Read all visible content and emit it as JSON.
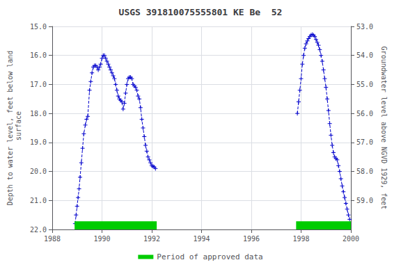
{
  "chart_data": {
    "type": "line",
    "title": "USGS 391810075555801 KE Be  52",
    "ylabel": "Depth to water level, feet below land\n surface",
    "y2label": "Groundwater level above NGVD 1929, feet",
    "xlim": [
      1988,
      2000
    ],
    "xticks": [
      1988,
      1990,
      1992,
      1994,
      1996,
      1998,
      2000
    ],
    "ylim": [
      22.0,
      15.0
    ],
    "yticks": [
      {
        "value": 15.0,
        "label": "15.0"
      },
      {
        "value": 16.0,
        "label": "16.0"
      },
      {
        "value": 17.0,
        "label": "17.0"
      },
      {
        "value": 18.0,
        "label": "18.0"
      },
      {
        "value": 19.0,
        "label": "19.0"
      },
      {
        "value": 20.0,
        "label": "20.0"
      },
      {
        "value": 21.0,
        "label": "21.0"
      },
      {
        "value": 22.0,
        "label": "22.0"
      }
    ],
    "y2lim": [
      60.0,
      53.0
    ],
    "y2ticks": [
      {
        "value": 53.0,
        "label": "53.0"
      },
      {
        "value": 54.0,
        "label": "54.0"
      },
      {
        "value": 55.0,
        "label": "55.0"
      },
      {
        "value": 56.0,
        "label": "56.0"
      },
      {
        "value": 57.0,
        "label": "57.0"
      },
      {
        "value": 58.0,
        "label": "58.0"
      },
      {
        "value": 59.0,
        "label": "59.0"
      }
    ],
    "grid": true,
    "legend": "bottom",
    "series": [
      {
        "color": "#0000CC",
        "line_style": "dashed",
        "marker": "plus",
        "x": [
          1988.92,
          1988.96,
          1989.0,
          1989.04,
          1989.08,
          1989.12,
          1989.17,
          1989.22,
          1989.27,
          1989.33,
          1989.38,
          1989.43,
          1989.5,
          1989.55,
          1989.6,
          1989.65,
          1989.7,
          1989.75,
          1989.8,
          1989.85,
          1989.9,
          1989.95,
          1990.0,
          1990.05,
          1990.1,
          1990.15,
          1990.2,
          1990.25,
          1990.3,
          1990.35,
          1990.4,
          1990.45,
          1990.5,
          1990.55,
          1990.6,
          1990.65,
          1990.7,
          1990.75,
          1990.8,
          1990.85,
          1990.9,
          1990.95,
          1991.0,
          1991.05,
          1991.1,
          1991.15,
          1991.2,
          1991.25,
          1991.3,
          1991.35,
          1991.4,
          1991.45,
          1991.5,
          1991.55,
          1991.6,
          1991.65,
          1991.7,
          1991.75,
          1991.8,
          1991.85,
          1991.9,
          1991.95,
          1992.0,
          1992.05,
          1992.1,
          1992.15
        ],
        "values": [
          21.8,
          21.5,
          21.2,
          20.9,
          20.6,
          20.2,
          19.7,
          19.2,
          18.7,
          18.4,
          18.2,
          18.1,
          17.2,
          16.9,
          16.6,
          16.4,
          16.35,
          16.35,
          16.4,
          16.5,
          16.4,
          16.3,
          16.1,
          16.0,
          16.0,
          16.1,
          16.2,
          16.3,
          16.4,
          16.5,
          16.6,
          16.7,
          16.8,
          17.0,
          17.2,
          17.4,
          17.5,
          17.55,
          17.6,
          17.85,
          17.65,
          17.3,
          17.0,
          16.8,
          16.75,
          16.75,
          16.8,
          17.0,
          17.05,
          17.1,
          17.2,
          17.4,
          17.5,
          17.8,
          18.2,
          18.5,
          18.8,
          19.1,
          19.3,
          19.5,
          19.6,
          19.7,
          19.8,
          19.82,
          19.85,
          19.9
        ]
      },
      {
        "color": "#0000CC",
        "line_style": "dashed",
        "marker": "plus",
        "x": [
          1997.85,
          1997.9,
          1997.95,
          1998.0,
          1998.05,
          1998.1,
          1998.15,
          1998.2,
          1998.25,
          1998.3,
          1998.35,
          1998.4,
          1998.45,
          1998.5,
          1998.55,
          1998.6,
          1998.65,
          1998.7,
          1998.75,
          1998.8,
          1998.85,
          1998.9,
          1998.95,
          1999.0,
          1999.05,
          1999.1,
          1999.15,
          1999.2,
          1999.25,
          1999.3,
          1999.35,
          1999.4,
          1999.45,
          1999.5,
          1999.55,
          1999.6,
          1999.65,
          1999.7,
          1999.75,
          1999.8,
          1999.85,
          1999.9,
          1999.95
        ],
        "values": [
          18.0,
          17.6,
          17.2,
          16.8,
          16.3,
          16.0,
          15.75,
          15.6,
          15.5,
          15.42,
          15.35,
          15.3,
          15.28,
          15.3,
          15.35,
          15.45,
          15.55,
          15.65,
          15.8,
          16.0,
          16.2,
          16.5,
          16.8,
          17.1,
          17.5,
          17.9,
          18.35,
          18.75,
          19.1,
          19.35,
          19.5,
          19.55,
          19.6,
          19.8,
          20.0,
          20.25,
          20.5,
          20.7,
          20.9,
          21.1,
          21.3,
          21.5,
          21.65
        ]
      }
    ],
    "spans": [
      {
        "name": "Period of approved data",
        "color": "#00CC00",
        "ranges": [
          [
            1988.9,
            1992.2
          ],
          [
            1997.8,
            2000.0
          ]
        ]
      }
    ]
  }
}
